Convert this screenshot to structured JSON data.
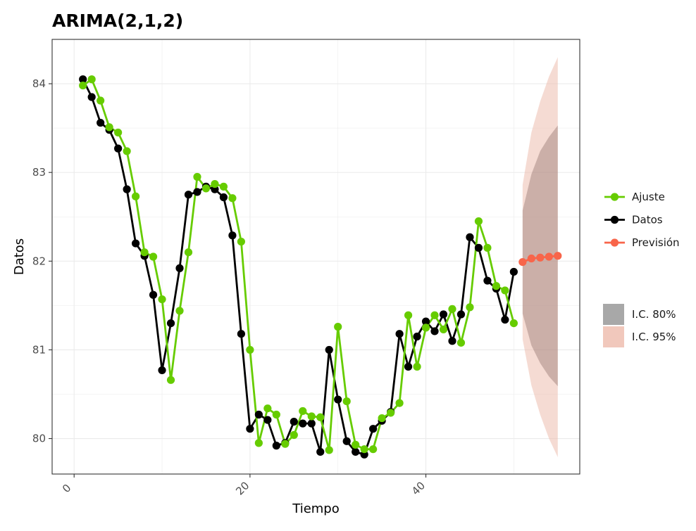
{
  "chart_data": {
    "type": "line",
    "title": "ARIMA(2,1,2)",
    "xlabel": "Tiempo",
    "ylabel": "Datos",
    "xlim": [
      -2.5,
      57.5
    ],
    "ylim": [
      79.6,
      84.5
    ],
    "x_ticks": [
      0,
      20,
      40
    ],
    "y_ticks": [
      80,
      81,
      82,
      83,
      84
    ],
    "grid": true,
    "legend_position": "right",
    "colors": {
      "ajuste": "#66cc00",
      "datos": "#000000",
      "prevision": "#f8654a",
      "ci80": "#8c6d68",
      "ci95": "#ecb8a8",
      "grid": "#ebebeb",
      "panel_border": "#333333"
    },
    "series": [
      {
        "name": "Datos",
        "x": [
          1,
          2,
          3,
          4,
          5,
          6,
          7,
          8,
          9,
          10,
          11,
          12,
          13,
          14,
          15,
          16,
          17,
          18,
          19,
          20,
          21,
          22,
          23,
          24,
          25,
          26,
          27,
          28,
          29,
          30,
          31,
          32,
          33,
          34,
          35,
          36,
          37,
          38,
          39,
          40,
          41,
          42,
          43,
          44,
          45,
          46,
          47,
          48,
          49,
          50
        ],
        "values": [
          84.05,
          83.85,
          83.56,
          83.48,
          83.27,
          82.81,
          82.2,
          82.06,
          81.62,
          80.77,
          81.3,
          81.92,
          82.75,
          82.78,
          82.84,
          82.81,
          82.72,
          82.29,
          81.18,
          80.11,
          80.27,
          80.21,
          79.92,
          79.95,
          80.19,
          80.17,
          80.17,
          79.85,
          81.0,
          80.44,
          79.97,
          79.85,
          79.82,
          80.11,
          80.2,
          80.3,
          81.18,
          80.81,
          81.15,
          81.32,
          81.21,
          81.4,
          81.1,
          81.4,
          82.27,
          82.15,
          81.78,
          81.69,
          81.34,
          81.88
        ]
      },
      {
        "name": "Ajuste",
        "x": [
          1,
          2,
          3,
          4,
          5,
          6,
          7,
          8,
          9,
          10,
          11,
          12,
          13,
          14,
          15,
          16,
          17,
          18,
          19,
          20,
          21,
          22,
          23,
          24,
          25,
          26,
          27,
          28,
          29,
          30,
          31,
          32,
          33,
          34,
          35,
          36,
          37,
          38,
          39,
          40,
          41,
          42,
          43,
          44,
          45,
          46,
          47,
          48,
          49,
          50
        ],
        "values": [
          83.98,
          84.05,
          83.81,
          83.51,
          83.45,
          83.24,
          82.73,
          82.1,
          82.05,
          81.57,
          80.66,
          81.44,
          82.1,
          82.95,
          82.82,
          82.87,
          82.84,
          82.71,
          82.22,
          81.0,
          79.95,
          80.34,
          80.27,
          79.94,
          80.04,
          80.31,
          80.25,
          80.24,
          79.87,
          81.26,
          80.42,
          79.93,
          79.88,
          79.88,
          80.23,
          80.29,
          80.4,
          81.39,
          80.81,
          81.25,
          81.39,
          81.23,
          81.46,
          81.08,
          81.48,
          82.45,
          82.15,
          81.72,
          81.67,
          81.3
        ]
      },
      {
        "name": "Previsión",
        "x": [
          51,
          52,
          53,
          54,
          55
        ],
        "values": [
          81.99,
          82.03,
          82.04,
          82.05,
          82.06
        ]
      }
    ],
    "intervals": [
      {
        "name": "I.C. 80%",
        "x": [
          51,
          52,
          53,
          54,
          55
        ],
        "lower": [
          81.41,
          81.05,
          80.85,
          80.7,
          80.59
        ],
        "upper": [
          82.57,
          82.98,
          83.24,
          83.4,
          83.53
        ]
      },
      {
        "name": "I.C. 95%",
        "x": [
          51,
          52,
          53,
          54,
          55
        ],
        "lower": [
          81.12,
          80.6,
          80.27,
          80.0,
          79.79
        ],
        "upper": [
          82.86,
          83.45,
          83.8,
          84.08,
          84.3
        ]
      }
    ],
    "legend": {
      "lines": [
        "Ajuste",
        "Datos",
        "Previsión"
      ],
      "fills": [
        "I.C. 80%",
        "I.C. 95%"
      ]
    }
  }
}
